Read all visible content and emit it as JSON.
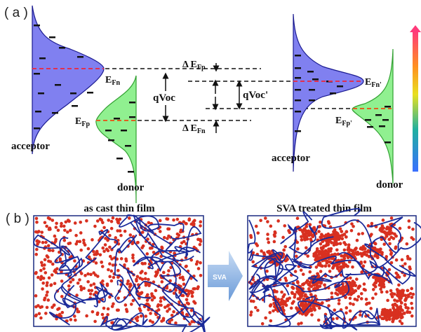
{
  "panel_a": {
    "label": "( a )",
    "left": {
      "acceptor": "acceptor",
      "donor": "donor",
      "efn": "E",
      "efn_sub": "Fn",
      "efp": "E",
      "efp_sub": "Fp"
    },
    "middle": {
      "qvoc": "qVoc",
      "qvoc_prime": "qVoc'",
      "delta_efp": "Δ E",
      "delta_efp_sub": "Fp",
      "delta_efn": "Δ E",
      "delta_efn_sub": "Fn"
    },
    "right": {
      "acceptor": "acceptor",
      "donor": "donor",
      "efn": "E",
      "efn_sub": "Fn'",
      "efp": "E",
      "efp_sub": "Fp'"
    },
    "colors": {
      "acceptor": "#8080f0",
      "donor": "#90f090",
      "fermi": "#e03050",
      "energy_arrow_top": "#ff3a7a",
      "energy_arrow_bottom": "#3a70ff"
    }
  },
  "panel_b": {
    "label": "( b )",
    "left_title": "as cast thin film",
    "right_title": "SVA treated thin film",
    "arrow_label": "SVA",
    "colors": {
      "particle": "#d83020",
      "polymer": "#1a2a9a"
    }
  }
}
